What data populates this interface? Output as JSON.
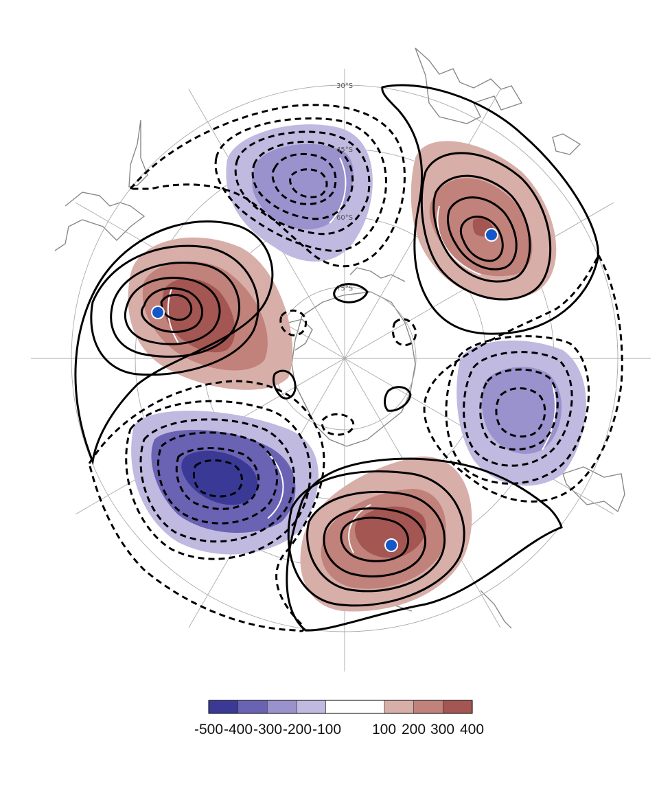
{
  "projection": "south-polar-stereographic",
  "latitude_labels": [
    "30°S",
    "45°S",
    "60°S",
    "75°S"
  ],
  "colorbar": {
    "tick_labels": [
      "-500",
      "-400",
      "-300",
      "-200",
      "-100",
      "100",
      "200",
      "300",
      "400"
    ],
    "colors": [
      "#3a3a96",
      "#6a62b2",
      "#9a92cc",
      "#c0b9e0",
      "#ffffff",
      "#d8aea8",
      "#c0827a",
      "#a35652"
    ]
  },
  "anomaly_centers": [
    {
      "sign": "positive",
      "marker": true
    },
    {
      "sign": "negative",
      "marker": false
    },
    {
      "sign": "positive",
      "marker": true
    },
    {
      "sign": "negative",
      "marker": false
    },
    {
      "sign": "positive",
      "marker": true
    },
    {
      "sign": "negative",
      "marker": false
    }
  ],
  "marker_color": "#1457c8"
}
